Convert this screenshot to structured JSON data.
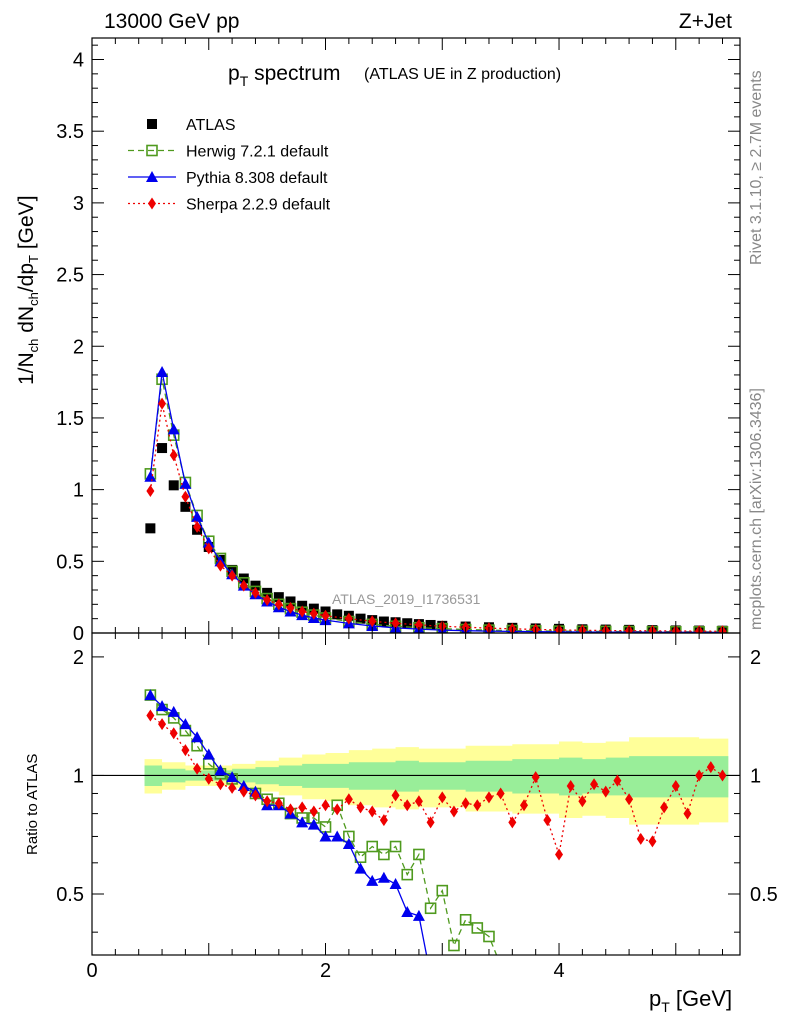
{
  "header": {
    "energy_label": "13000 GeV pp",
    "process_label": "Z+Jet"
  },
  "side_text": {
    "rivet": "Rivet 3.1.10, ≥ 2.7M events",
    "source": "mcplots.cern.ch [arXiv:1306.3436]"
  },
  "chart_data": [
    {
      "type": "scatter",
      "panel": "main",
      "title_main": "p",
      "title_sub": "T",
      "title_rest": " spectrum",
      "title_note": "(ATLAS UE in Z production)",
      "ylabel": "1/N_ch dN_ch/dp_T [GeV]",
      "ylim": [
        0,
        4.15
      ],
      "yticks": [
        "0",
        "0.5",
        "1",
        "1.5",
        "2",
        "2.5",
        "3",
        "3.5",
        "4"
      ],
      "watermark": "ATLAS_2019_I1736531",
      "series": [
        {
          "name": "ATLAS",
          "color": "#000000",
          "x": [
            0.5,
            0.6,
            0.7,
            0.8,
            0.9,
            1.0,
            1.1,
            1.2,
            1.3,
            1.4,
            1.5,
            1.6,
            1.7,
            1.8,
            1.9,
            2.0,
            2.1,
            2.2,
            2.3,
            2.4,
            2.5,
            2.6,
            2.7,
            2.8,
            2.9,
            3.0,
            3.2,
            3.4,
            3.6,
            3.8,
            4.0,
            4.2,
            4.4,
            4.6,
            4.8,
            5.0,
            5.2,
            5.4
          ],
          "y": [
            0.73,
            1.29,
            1.03,
            0.88,
            0.72,
            0.6,
            0.51,
            0.44,
            0.38,
            0.33,
            0.28,
            0.25,
            0.22,
            0.19,
            0.17,
            0.15,
            0.13,
            0.12,
            0.1,
            0.09,
            0.08,
            0.075,
            0.068,
            0.062,
            0.056,
            0.05,
            0.045,
            0.04,
            0.036,
            0.032,
            0.029,
            0.026,
            0.024,
            0.022,
            0.02,
            0.018,
            0.017,
            0.016
          ]
        },
        {
          "name": "Herwig 7.2.1 default",
          "color": "#4f9a1e",
          "x": [
            0.5,
            0.6,
            0.7,
            0.8,
            0.9,
            1.0,
            1.1,
            1.2,
            1.3,
            1.4,
            1.5,
            1.6,
            1.7,
            1.8,
            1.9,
            2.0,
            2.2,
            2.4,
            2.6,
            2.8,
            3.0,
            3.2,
            3.4,
            3.6,
            3.8,
            4.0,
            4.2,
            4.4,
            4.6,
            4.8,
            5.0,
            5.2,
            5.4
          ],
          "y": [
            1.11,
            1.77,
            1.38,
            1.05,
            0.82,
            0.64,
            0.52,
            0.43,
            0.35,
            0.29,
            0.24,
            0.2,
            0.17,
            0.145,
            0.125,
            0.105,
            0.08,
            0.06,
            0.047,
            0.037,
            0.03,
            0.024,
            0.02,
            0.017,
            0.015,
            0.013,
            0.012,
            0.011,
            0.01,
            0.009,
            0.009,
            0.008,
            0.008
          ]
        },
        {
          "name": "Pythia 8.308 default",
          "color": "#0000ee",
          "x": [
            0.5,
            0.6,
            0.7,
            0.8,
            0.9,
            1.0,
            1.1,
            1.2,
            1.3,
            1.4,
            1.5,
            1.6,
            1.7,
            1.8,
            1.9,
            2.0,
            2.2,
            2.4,
            2.6,
            2.8,
            3.0,
            3.2,
            3.4,
            3.6,
            3.8,
            4.0,
            4.2,
            4.4,
            4.6,
            4.8,
            5.0,
            5.2,
            5.4
          ],
          "y": [
            1.09,
            1.82,
            1.42,
            1.04,
            0.81,
            0.63,
            0.5,
            0.41,
            0.33,
            0.27,
            0.22,
            0.18,
            0.15,
            0.125,
            0.105,
            0.09,
            0.067,
            0.049,
            0.036,
            0.027,
            0.02,
            0.016,
            0.013,
            0.011,
            0.009,
            0.008,
            0.007,
            0.006,
            0.006,
            0.005,
            0.005,
            0.005,
            0.004
          ]
        },
        {
          "name": "Sherpa 2.2.9 default",
          "color": "#ee0000",
          "x": [
            0.5,
            0.6,
            0.7,
            0.8,
            0.9,
            1.0,
            1.1,
            1.2,
            1.3,
            1.4,
            1.5,
            1.6,
            1.7,
            1.8,
            1.9,
            2.0,
            2.2,
            2.4,
            2.6,
            2.8,
            3.0,
            3.2,
            3.4,
            3.6,
            3.8,
            4.0,
            4.2,
            4.4,
            4.6,
            4.8,
            5.0,
            5.2,
            5.4
          ],
          "y": [
            0.99,
            1.6,
            1.24,
            0.95,
            0.74,
            0.59,
            0.47,
            0.4,
            0.33,
            0.28,
            0.23,
            0.2,
            0.175,
            0.15,
            0.135,
            0.12,
            0.1,
            0.082,
            0.068,
            0.057,
            0.047,
            0.04,
            0.034,
            0.029,
            0.025,
            0.021,
            0.019,
            0.017,
            0.016,
            0.015,
            0.014,
            0.013,
            0.012
          ]
        }
      ]
    },
    {
      "type": "line",
      "panel": "ratio",
      "ylabel": "Ratio to ATLAS",
      "xlabel": "p_T [GeV]",
      "xlim": [
        0,
        5.55
      ],
      "ylim": [
        0.35,
        2.3
      ],
      "xticks": [
        "0",
        "2",
        "4"
      ],
      "yticks": [
        "0.5",
        "1",
        "2"
      ],
      "band_x": [
        0.45,
        0.6,
        0.8,
        1.0,
        1.2,
        1.4,
        1.6,
        1.8,
        2.0,
        2.2,
        2.4,
        2.6,
        2.8,
        3.0,
        3.2,
        3.4,
        3.6,
        3.8,
        4.0,
        4.2,
        4.4,
        4.6,
        4.8,
        5.0,
        5.2,
        5.45
      ],
      "band_inner": [
        0.06,
        0.04,
        0.03,
        0.03,
        0.04,
        0.05,
        0.06,
        0.07,
        0.07,
        0.08,
        0.08,
        0.09,
        0.08,
        0.08,
        0.09,
        0.09,
        0.1,
        0.1,
        0.11,
        0.1,
        0.11,
        0.12,
        0.12,
        0.12,
        0.12,
        0.12
      ],
      "band_outer": [
        0.1,
        0.08,
        0.06,
        0.06,
        0.07,
        0.09,
        0.11,
        0.13,
        0.14,
        0.16,
        0.17,
        0.18,
        0.17,
        0.17,
        0.19,
        0.19,
        0.2,
        0.2,
        0.22,
        0.21,
        0.22,
        0.25,
        0.25,
        0.25,
        0.24,
        0.24
      ],
      "series": [
        {
          "name": "Herwig 7.2.1 default",
          "color": "#4f9a1e",
          "x": [
            0.5,
            0.6,
            0.7,
            0.8,
            0.9,
            1.0,
            1.1,
            1.2,
            1.4,
            1.5,
            1.6,
            1.7,
            1.8,
            1.9,
            2.0,
            2.1,
            2.2,
            2.3,
            2.4,
            2.5,
            2.6,
            2.7,
            2.8,
            2.9,
            3.0,
            3.1,
            3.2,
            3.3,
            3.4,
            3.5
          ],
          "y": [
            1.6,
            1.47,
            1.4,
            1.3,
            1.19,
            1.07,
            1.01,
            0.98,
            0.9,
            0.87,
            0.85,
            0.8,
            0.78,
            0.78,
            0.74,
            0.84,
            0.7,
            0.62,
            0.66,
            0.63,
            0.66,
            0.56,
            0.63,
            0.46,
            0.51,
            0.37,
            0.43,
            0.41,
            0.39,
            0.33
          ]
        },
        {
          "name": "Pythia 8.308 default",
          "color": "#0000ee",
          "x": [
            0.5,
            0.6,
            0.7,
            0.8,
            0.9,
            1.0,
            1.1,
            1.2,
            1.3,
            1.4,
            1.5,
            1.6,
            1.7,
            1.8,
            1.9,
            2.0,
            2.1,
            2.2,
            2.3,
            2.4,
            2.5,
            2.6,
            2.7,
            2.8,
            2.9
          ],
          "y": [
            1.6,
            1.5,
            1.45,
            1.35,
            1.25,
            1.13,
            1.03,
            0.99,
            0.94,
            0.91,
            0.84,
            0.84,
            0.8,
            0.76,
            0.75,
            0.7,
            0.7,
            0.67,
            0.58,
            0.54,
            0.55,
            0.53,
            0.45,
            0.44,
            0.31
          ]
        },
        {
          "name": "Sherpa 2.2.9 default",
          "color": "#ee0000",
          "x": [
            0.5,
            0.6,
            0.7,
            0.8,
            0.9,
            1.0,
            1.1,
            1.2,
            1.3,
            1.4,
            1.5,
            1.6,
            1.7,
            1.8,
            1.9,
            2.0,
            2.1,
            2.2,
            2.3,
            2.4,
            2.5,
            2.6,
            2.7,
            2.8,
            2.9,
            3.0,
            3.1,
            3.2,
            3.3,
            3.4,
            3.5,
            3.6,
            3.7,
            3.8,
            3.9,
            4.0,
            4.1,
            4.2,
            4.3,
            4.4,
            4.5,
            4.6,
            4.7,
            4.8,
            4.9,
            5.0,
            5.1,
            5.2,
            5.3,
            5.4
          ],
          "y": [
            1.42,
            1.35,
            1.28,
            1.16,
            1.04,
            0.98,
            0.95,
            0.93,
            0.91,
            0.89,
            0.86,
            0.85,
            0.82,
            0.83,
            0.81,
            0.84,
            0.82,
            0.87,
            0.83,
            0.81,
            0.77,
            0.89,
            0.84,
            0.86,
            0.76,
            0.88,
            0.81,
            0.85,
            0.84,
            0.88,
            0.9,
            0.76,
            0.84,
            0.99,
            0.77,
            0.63,
            0.94,
            0.86,
            0.95,
            0.91,
            0.97,
            0.87,
            0.69,
            0.68,
            0.83,
            0.94,
            0.8,
            1.0,
            1.05,
            1.0
          ]
        }
      ]
    }
  ]
}
